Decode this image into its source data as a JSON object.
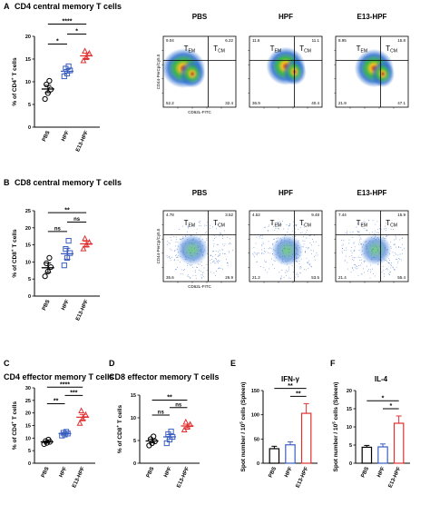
{
  "panels": {
    "A": {
      "letter": "A",
      "title": "CD4 central memory T cells"
    },
    "B": {
      "letter": "B",
      "title": "CD8 central memory T cells"
    },
    "C": {
      "letter": "C",
      "title": "CD4 effector memory T cells"
    },
    "D": {
      "letter": "D",
      "title": "CD8 effector memory T cells"
    },
    "E": {
      "letter": "E",
      "title": "IFN-γ"
    },
    "F": {
      "letter": "F",
      "title": "IL-4"
    }
  },
  "flow": {
    "headers": [
      "PBS",
      "HPF",
      "E13-HPF"
    ],
    "region_labels": {
      "em": "T",
      "em_sub": "EM",
      "cm": "T",
      "cm_sub": "CM"
    },
    "row_A": {
      "y_label": "CD44-PerCp/Cy5.5",
      "x_label": "CD62L-FITC",
      "quadrants": [
        {
          "ul": "9.04",
          "ur": "6.22",
          "ll": "52.2",
          "lr": "32.4"
        },
        {
          "ul": "11.6",
          "ur": "11.1",
          "ll": "36.9",
          "lr": "40.4"
        },
        {
          "ul": "8.95",
          "ur": "15.8",
          "ll": "21.9",
          "lr": "47.1"
        }
      ]
    },
    "row_B": {
      "y_label": "CD44-PerCp/Cy5.5",
      "x_label": "CD62L-FITC",
      "quadrants": [
        {
          "ul": "4.78",
          "ur": "3.52",
          "ll": "35.6",
          "lr": "26.9"
        },
        {
          "ul": "4.52",
          "ur": "9.48",
          "ll": "21.2",
          "lr": "53.5"
        },
        {
          "ul": "7.44",
          "ur": "15.9",
          "ll": "21.4",
          "lr": "55.4"
        }
      ]
    }
  },
  "chart_data": [
    {
      "id": "A-scatter",
      "type": "scatter",
      "ylabel": "% of CD4+ T cells",
      "ylabel_main": "% of CD4",
      "ylabel_sup": "+",
      "ylabel_tail": " T cells",
      "ylim": [
        0,
        20
      ],
      "yticks": [
        0,
        5,
        10,
        15,
        20
      ],
      "categories": [
        "PBS",
        "HPF",
        "E13-HPF"
      ],
      "colors": [
        "#000000",
        "#3b5fc0",
        "#e03030"
      ],
      "markers": [
        "circle",
        "square",
        "triangle"
      ],
      "points": [
        [
          6.2,
          7.5,
          8.3,
          9.4,
          10.2
        ],
        [
          11.2,
          11.8,
          12.5,
          12.9,
          13.4
        ],
        [
          14.6,
          15.3,
          16.2,
          16.7
        ]
      ],
      "means": [
        8.4,
        12.3,
        15.7
      ],
      "sems": [
        0.8,
        0.4,
        0.6
      ],
      "sig": [
        {
          "from": 0,
          "to": 1,
          "label": "*"
        },
        {
          "from": 1,
          "to": 2,
          "label": "*"
        },
        {
          "from": 0,
          "to": 2,
          "label": "****"
        }
      ]
    },
    {
      "id": "B-scatter",
      "type": "scatter",
      "ylabel": "% of CD8+ T cells",
      "ylabel_main": "% of CD8",
      "ylabel_sup": "+",
      "ylabel_tail": " T cells",
      "ylim": [
        0,
        25
      ],
      "yticks": [
        0,
        5,
        10,
        15,
        20,
        25
      ],
      "categories": [
        "PBS",
        "HPF",
        "E13-HPF"
      ],
      "colors": [
        "#000000",
        "#3b5fc0",
        "#e03030"
      ],
      "markers": [
        "circle",
        "square",
        "triangle"
      ],
      "points": [
        [
          5.8,
          7.2,
          8.5,
          9.6,
          11.2
        ],
        [
          9.0,
          11.2,
          12.6,
          13.8,
          16.2
        ],
        [
          13.8,
          14.9,
          15.7,
          16.8
        ]
      ],
      "means": [
        8.3,
        12.4,
        15.3
      ],
      "sems": [
        1.4,
        1.6,
        0.8
      ],
      "sig": [
        {
          "from": 0,
          "to": 1,
          "label": "ns"
        },
        {
          "from": 0,
          "to": 2,
          "label": "**"
        },
        {
          "from": 1,
          "to": 2,
          "label": "ns"
        }
      ]
    },
    {
      "id": "C-scatter",
      "type": "scatter",
      "ylabel": "% of CD4+ T cells",
      "ylabel_main": "% of CD4",
      "ylabel_sup": "+",
      "ylabel_tail": " T cells",
      "ylim": [
        0,
        30
      ],
      "yticks": [
        0,
        5,
        10,
        15,
        20,
        25,
        30
      ],
      "categories": [
        "PBS",
        "HPF",
        "E13-HPF"
      ],
      "colors": [
        "#000000",
        "#3b5fc0",
        "#e03030"
      ],
      "markers": [
        "circle",
        "square",
        "triangle"
      ],
      "points": [
        [
          7.6,
          8.1,
          8.5,
          8.8,
          9.4
        ],
        [
          11.0,
          11.4,
          11.8,
          12.1,
          12.5
        ],
        [
          15.8,
          17.6,
          19.2,
          20.8
        ]
      ],
      "means": [
        8.5,
        11.8,
        18.3
      ],
      "sems": [
        0.3,
        0.3,
        1.1
      ],
      "sig": [
        {
          "from": 0,
          "to": 1,
          "label": "**"
        },
        {
          "from": 0,
          "to": 2,
          "label": "****"
        },
        {
          "from": 1,
          "to": 2,
          "label": "***"
        }
      ]
    },
    {
      "id": "D-scatter",
      "type": "scatter",
      "ylabel": "% of CD8+ T cells",
      "ylabel_main": "% of CD8",
      "ylabel_sup": "+",
      "ylabel_tail": " T cells",
      "ylim": [
        0,
        15
      ],
      "yticks": [
        0,
        5,
        10,
        15
      ],
      "categories": [
        "PBS",
        "HPF",
        "E13-HPF"
      ],
      "colors": [
        "#000000",
        "#3b5fc0",
        "#e03030"
      ],
      "markers": [
        "circle",
        "square",
        "triangle"
      ],
      "points": [
        [
          3.9,
          4.4,
          4.8,
          5.3,
          5.9
        ],
        [
          4.4,
          5.2,
          5.8,
          6.4,
          7.0
        ],
        [
          7.3,
          7.9,
          8.5,
          9.0
        ]
      ],
      "means": [
        4.9,
        5.8,
        8.2
      ],
      "sems": [
        0.4,
        0.5,
        0.4
      ],
      "sig": [
        {
          "from": 0,
          "to": 1,
          "label": "ns"
        },
        {
          "from": 0,
          "to": 2,
          "label": "**"
        },
        {
          "from": 1,
          "to": 2,
          "label": "ns"
        }
      ]
    },
    {
      "id": "E-bar",
      "type": "bar",
      "ylabel": "Spot number / 10^5 cells (Spleen)",
      "ylabel_main": "Spot number / 10",
      "ylabel_sup": "5",
      "ylabel_tail": " cells (Spleen)",
      "ylim": [
        0,
        150
      ],
      "yticks": [
        0,
        50,
        100,
        150
      ],
      "categories": [
        "PBS",
        "HPF",
        "E13-HPF"
      ],
      "colors": [
        "#000000",
        "#3b5fc0",
        "#e03030"
      ],
      "values": [
        30,
        38,
        103
      ],
      "errors": [
        5,
        6,
        20
      ],
      "sig": [
        {
          "from": 0,
          "to": 2,
          "label": "**"
        },
        {
          "from": 1,
          "to": 2,
          "label": "**"
        }
      ]
    },
    {
      "id": "F-bar",
      "type": "bar",
      "ylabel": "Spot number / 10^5 cells (Spleen)",
      "ylabel_main": "Spot number / 10",
      "ylabel_sup": "5",
      "ylabel_tail": " cells (Spleen)",
      "ylim": [
        0,
        20
      ],
      "yticks": [
        0,
        5,
        10,
        15,
        20
      ],
      "categories": [
        "PBS",
        "HPF",
        "E13-HPF"
      ],
      "colors": [
        "#000000",
        "#3b5fc0",
        "#e03030"
      ],
      "values": [
        4.4,
        4.5,
        11
      ],
      "errors": [
        0.5,
        0.8,
        2.0
      ],
      "sig": [
        {
          "from": 0,
          "to": 2,
          "label": "*"
        },
        {
          "from": 1,
          "to": 2,
          "label": "*"
        }
      ]
    }
  ]
}
